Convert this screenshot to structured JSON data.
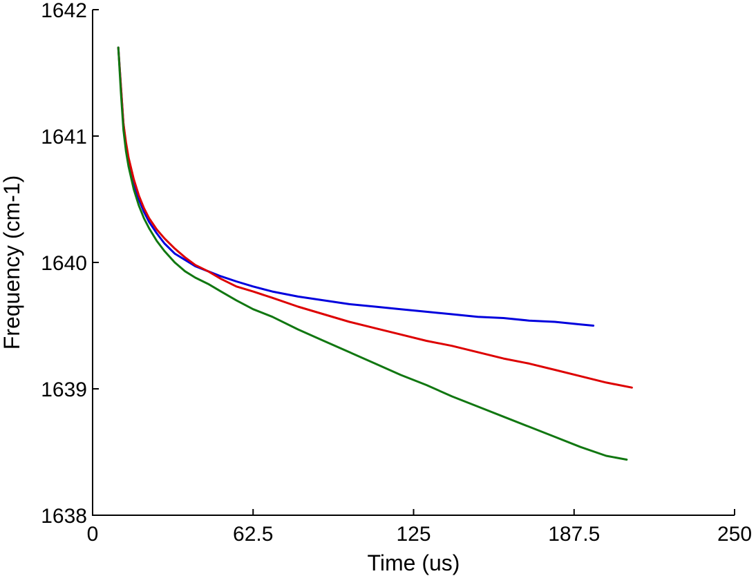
{
  "chart_data": {
    "type": "line",
    "title": "",
    "xlabel": "Time (us)",
    "ylabel": "Frequency (cm-1)",
    "xlim": [
      0,
      250
    ],
    "ylim": [
      1638,
      1642
    ],
    "xticks": [
      0,
      62.5,
      125,
      187.5,
      250
    ],
    "xtick_labels": [
      "0",
      "62.5",
      "125",
      "187.5",
      "250"
    ],
    "yticks": [
      1638,
      1639,
      1640,
      1641,
      1642
    ],
    "ytick_labels": [
      "1638",
      "1639",
      "1640",
      "1641",
      "1642"
    ],
    "grid": false,
    "legend": "none",
    "series": [
      {
        "color": "#0000dd",
        "x": [
          10,
          11,
          12,
          13,
          14,
          16,
          18,
          20,
          22,
          25,
          28,
          32,
          36,
          40,
          45,
          50,
          56,
          62.5,
          70,
          80,
          90,
          100,
          110,
          120,
          130,
          140,
          150,
          160,
          170,
          180,
          190,
          195
        ],
        "y": [
          1641.7,
          1641.4,
          1641.1,
          1640.92,
          1640.8,
          1640.63,
          1640.5,
          1640.4,
          1640.32,
          1640.23,
          1640.15,
          1640.07,
          1640.02,
          1639.97,
          1639.93,
          1639.89,
          1639.85,
          1639.81,
          1639.77,
          1639.73,
          1639.7,
          1639.67,
          1639.65,
          1639.63,
          1639.61,
          1639.59,
          1639.57,
          1639.56,
          1639.54,
          1639.53,
          1639.51,
          1639.5
        ]
      },
      {
        "color": "#dd0000",
        "x": [
          10,
          11,
          12,
          13,
          14,
          16,
          18,
          20,
          22,
          25,
          28,
          32,
          36,
          40,
          45,
          50,
          56,
          62.5,
          70,
          80,
          90,
          100,
          110,
          120,
          130,
          140,
          150,
          160,
          170,
          180,
          190,
          200,
          210
        ],
        "y": [
          1641.7,
          1641.4,
          1641.1,
          1640.95,
          1640.83,
          1640.66,
          1640.53,
          1640.43,
          1640.35,
          1640.26,
          1640.19,
          1640.11,
          1640.04,
          1639.98,
          1639.93,
          1639.87,
          1639.81,
          1639.77,
          1639.72,
          1639.65,
          1639.59,
          1639.53,
          1639.48,
          1639.43,
          1639.38,
          1639.34,
          1639.29,
          1639.24,
          1639.2,
          1639.15,
          1639.1,
          1639.05,
          1639.01
        ]
      },
      {
        "color": "#117711",
        "x": [
          10,
          11,
          12,
          13,
          14,
          16,
          18,
          20,
          22,
          25,
          28,
          32,
          36,
          40,
          45,
          50,
          56,
          62.5,
          70,
          80,
          90,
          100,
          110,
          120,
          130,
          140,
          150,
          160,
          170,
          180,
          190,
          200,
          208
        ],
        "y": [
          1641.7,
          1641.35,
          1641.05,
          1640.88,
          1640.76,
          1640.58,
          1640.45,
          1640.35,
          1640.27,
          1640.17,
          1640.09,
          1640.0,
          1639.93,
          1639.88,
          1639.83,
          1639.77,
          1639.7,
          1639.63,
          1639.57,
          1639.47,
          1639.38,
          1639.29,
          1639.2,
          1639.11,
          1639.03,
          1638.94,
          1638.86,
          1638.78,
          1638.7,
          1638.62,
          1638.54,
          1638.47,
          1638.44
        ]
      }
    ]
  }
}
